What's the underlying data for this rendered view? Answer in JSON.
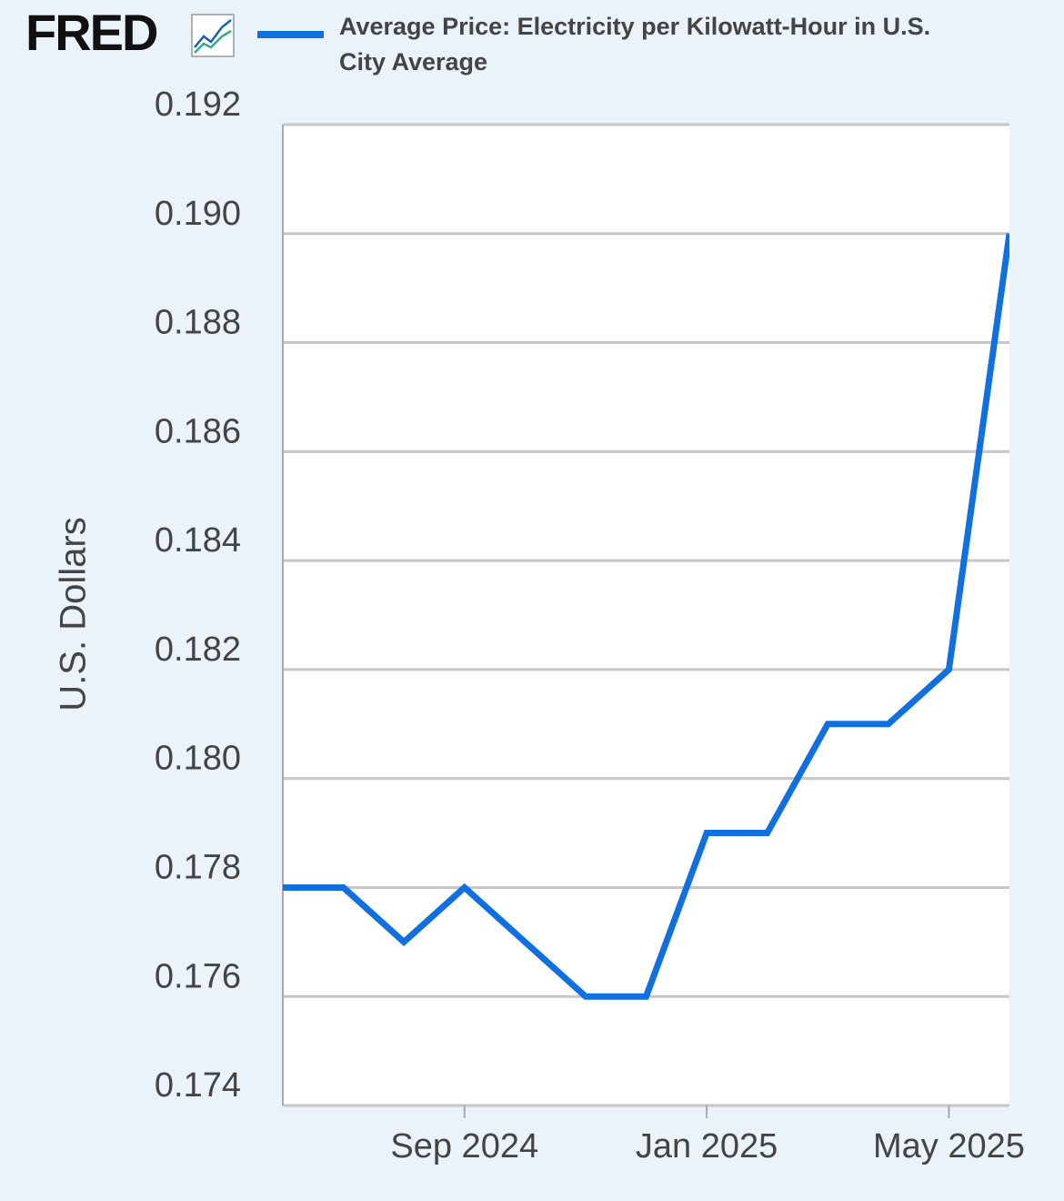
{
  "logo": "FRED",
  "chart_data": {
    "type": "line",
    "y_label": "U.S. Dollars",
    "x": [
      "2024-06",
      "2024-07",
      "2024-08",
      "2024-09",
      "2024-10",
      "2024-11",
      "2024-12",
      "2025-01",
      "2025-02",
      "2025-03",
      "2025-04",
      "2025-05",
      "2025-06"
    ],
    "series": [
      {
        "name": "Average Price: Electricity per Kilowatt-Hour in U.S. City Average",
        "color": "#1170e0",
        "values": [
          0.178,
          0.178,
          0.177,
          0.178,
          0.177,
          0.176,
          0.176,
          0.179,
          0.179,
          0.181,
          0.181,
          0.182,
          0.19
        ]
      }
    ],
    "xlim": [
      "2024-06",
      "2025-06"
    ],
    "xticks": [
      {
        "value": "2024-09",
        "label": "Sep 2024"
      },
      {
        "value": "2025-01",
        "label": "Jan 2025"
      },
      {
        "value": "2025-05",
        "label": "May 2025"
      }
    ],
    "ylim": [
      0.174,
      0.192
    ],
    "yticks": [
      0.174,
      0.176,
      0.178,
      {
        "value": 0.18,
        "label": "0.180"
      },
      0.182,
      0.184,
      0.186,
      0.188,
      {
        "value": 0.19,
        "label": "0.190"
      },
      0.192
    ],
    "grid": true
  }
}
